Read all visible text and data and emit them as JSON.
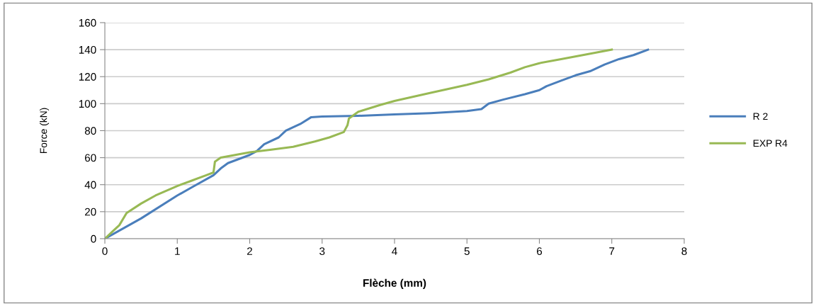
{
  "chart_data": {
    "type": "line",
    "xlabel": "Flèche (mm)",
    "ylabel": "Force (kN)",
    "xlim": [
      0,
      8
    ],
    "xticks": [
      0,
      1,
      2,
      3,
      4,
      5,
      6,
      7,
      8
    ],
    "ylim": [
      0,
      160
    ],
    "yticks": [
      0,
      20,
      40,
      60,
      80,
      100,
      120,
      140,
      160
    ],
    "grid": "y",
    "legend": "right",
    "marker": "none",
    "line_style": "solid",
    "series": [
      {
        "name": "R 2",
        "color": "#4a7ebb",
        "x": [
          0,
          0.5,
          1,
          1.2,
          1.5,
          1.6,
          1.7,
          2,
          2.1,
          2.2,
          2.4,
          2.5,
          2.7,
          2.85,
          3,
          3.5,
          4,
          4.5,
          5,
          5.2,
          5.3,
          5.5,
          5.8,
          6,
          6.1,
          6.3,
          6.5,
          6.7,
          6.9,
          7.1,
          7.3,
          7.5
        ],
        "values": [
          0,
          15,
          32,
          38,
          47,
          52,
          56,
          62,
          65,
          70,
          75,
          80,
          85,
          90,
          90.5,
          91,
          92,
          93,
          94.5,
          96,
          100,
          103,
          107,
          110,
          113,
          117,
          121,
          124,
          129,
          133,
          136,
          140
        ]
      },
      {
        "name": "EXP R4",
        "color": "#98b954",
        "x": [
          0,
          0.1,
          0.2,
          0.3,
          0.5,
          0.7,
          1,
          1.2,
          1.4,
          1.5,
          1.52,
          1.6,
          1.8,
          2,
          2.3,
          2.6,
          2.9,
          3.1,
          3.3,
          3.35,
          3.37,
          3.5,
          3.8,
          4,
          4.5,
          5,
          5.3,
          5.6,
          5.8,
          6,
          6.3,
          6.6,
          7
        ],
        "values": [
          0,
          5,
          10,
          19,
          26,
          32,
          39,
          43,
          47,
          49,
          57,
          60,
          62,
          64,
          66,
          68,
          72,
          75,
          79,
          84,
          89,
          94,
          99,
          102,
          108,
          114,
          118,
          123,
          127,
          130,
          133,
          136,
          140
        ]
      }
    ]
  }
}
